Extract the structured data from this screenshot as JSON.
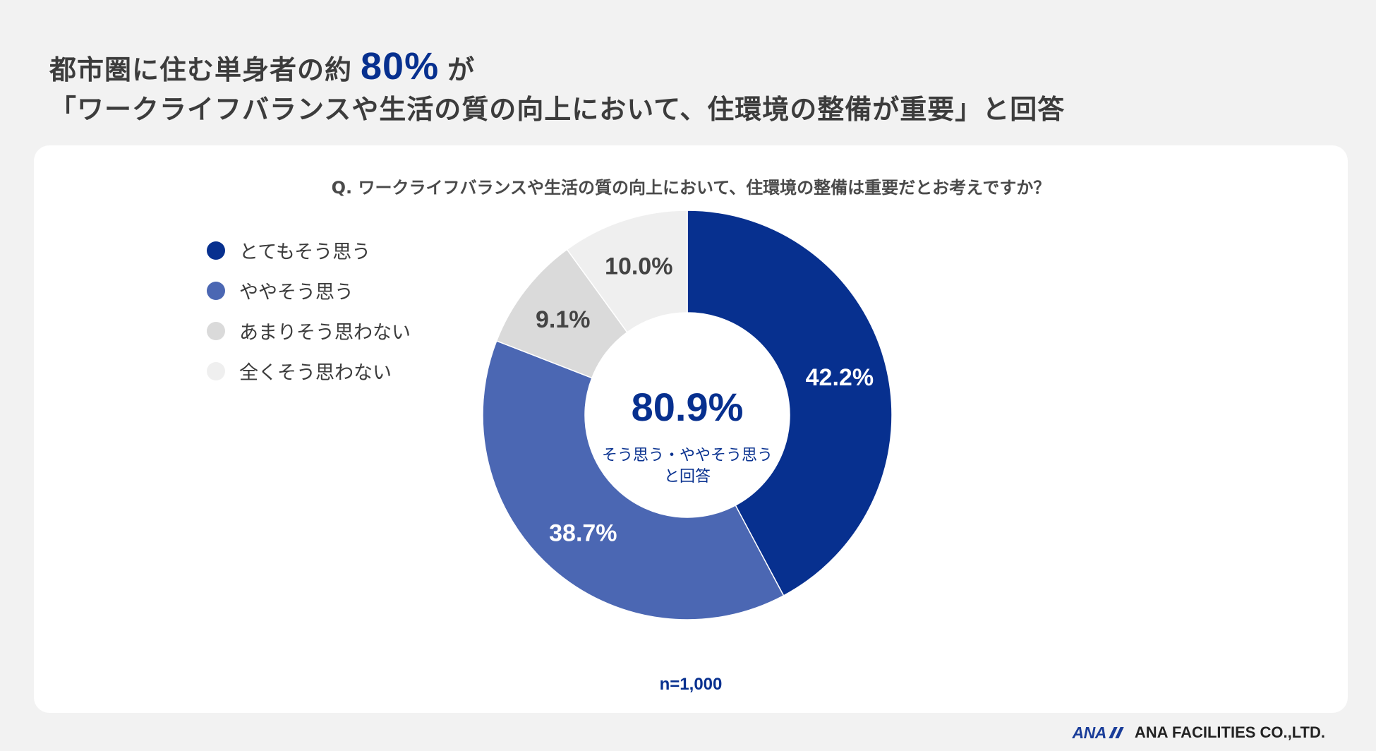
{
  "headline": {
    "line1_pre": "都市圏に住む単身者の約",
    "line1_strong": "80%",
    "line1_post": "が",
    "line2": "「ワークライフバランスや生活の質の向上において、住環境の整備が重要」と回答"
  },
  "chart_data": {
    "type": "pie",
    "subtype": "donut",
    "title": "Q. ワークライフバランスや生活の質の向上において、住環境の整備は重要だとお考えですか？",
    "categories": [
      "とてもそう思う",
      "ややそう思う",
      "あまりそう思わない",
      "全くそう思わない"
    ],
    "values": [
      42.2,
      38.7,
      9.1,
      10.0
    ],
    "value_labels": [
      "42.2%",
      "38.7%",
      "9.1%",
      "10.0%"
    ],
    "colors": [
      "#07308f",
      "#4b67b3",
      "#dadada",
      "#efefef"
    ],
    "legend_placement": "left",
    "center": {
      "value": "80.9%",
      "caption_line1": "そう思う・ややそう思う",
      "caption_line2": "と回答"
    },
    "n_label": "n=1,000"
  },
  "footer": {
    "logo_mark": "ANA",
    "company": "ANA FACILITIES CO.,LTD."
  }
}
